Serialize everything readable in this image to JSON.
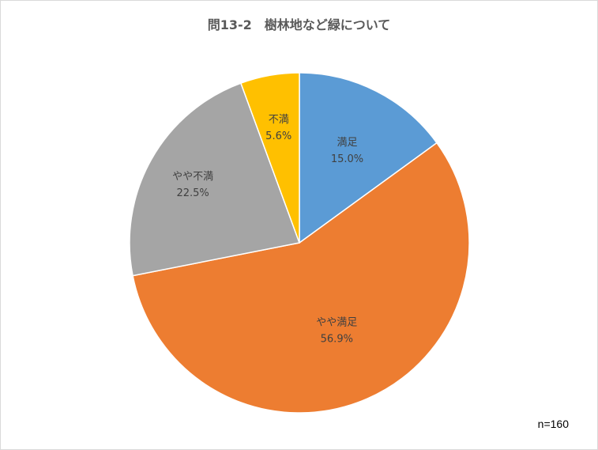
{
  "chart_data": {
    "type": "pie",
    "title": "問13-2　樹林地など緑について",
    "slices": [
      {
        "label": "満足",
        "value": 15.0,
        "value_label": "15.0%",
        "color": "#5b9bd5"
      },
      {
        "label": "やや満足",
        "value": 56.9,
        "value_label": "56.9%",
        "color": "#ed7d31"
      },
      {
        "label": "やや不満",
        "value": 22.5,
        "value_label": "22.5%",
        "color": "#a5a5a5"
      },
      {
        "label": "不満",
        "value": 5.6,
        "value_label": "5.6%",
        "color": "#ffc000"
      }
    ],
    "start_angle_deg": 0,
    "direction": "clockwise",
    "legend": "none",
    "note": "n=160"
  }
}
